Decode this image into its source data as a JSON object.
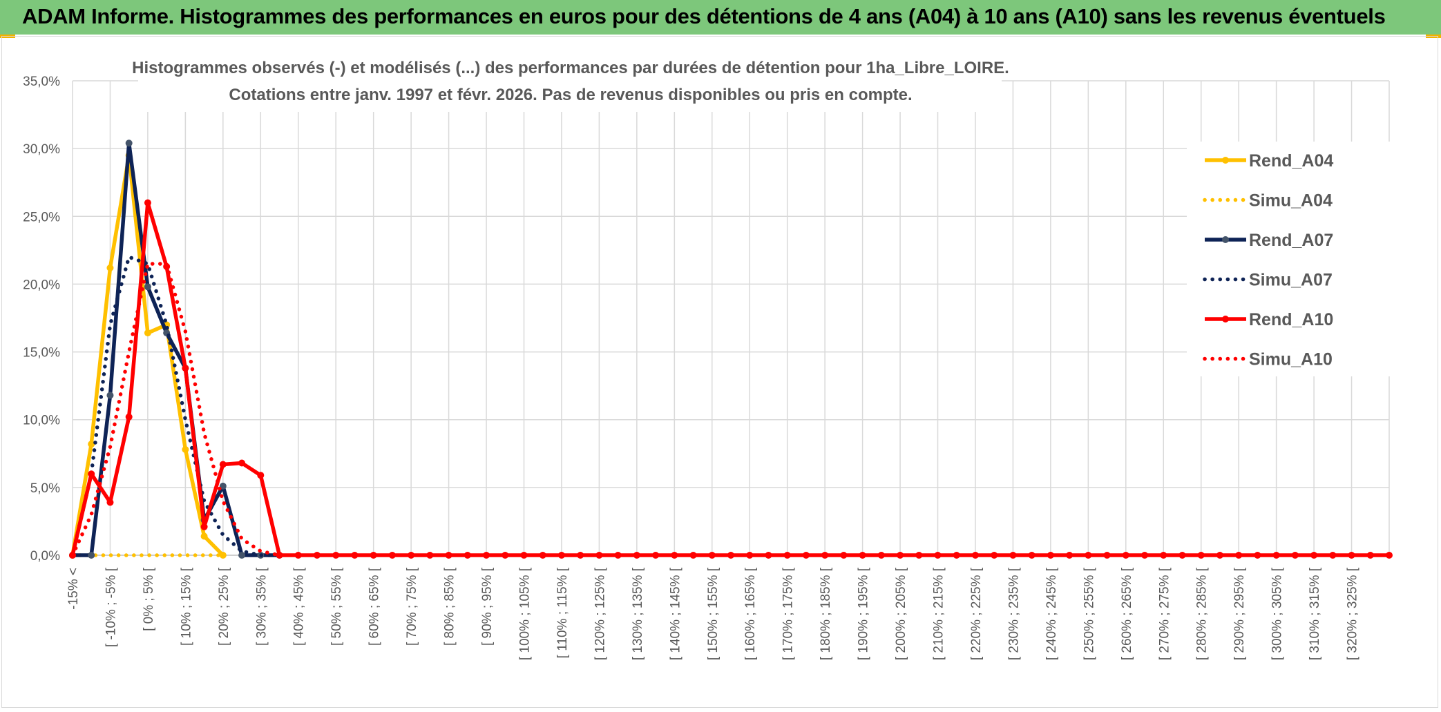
{
  "banner": {
    "title": "ADAM Informe. Histogrammes des performances en euros pour des détentions de 4 ans (A04) à 10 ans (A10) sans les revenus éventuels"
  },
  "chart_data": {
    "type": "line",
    "title": "Histogrammes observés (-) et modélisés (...) des performances par durées de détention pour 1ha_Libre_LOIRE.",
    "subtitle": "Cotations entre janv. 1997 et févr. 2026. Pas de revenus disponibles ou pris en compte.",
    "xlabel": "",
    "ylabel": "",
    "ylim": [
      0,
      35
    ],
    "y_ticks": [
      "0,0%",
      "5,0%",
      "10,0%",
      "15,0%",
      "20,0%",
      "25,0%",
      "30,0%",
      "35,0%"
    ],
    "x_labels": [
      "-15% <",
      "[ -10% ; -5% [",
      "[ 0% ; 5% [",
      "[ 10% ; 15% [",
      "[ 20% ; 25% [",
      "[ 30% ; 35% [",
      "[ 40% ; 45% [",
      "[ 50% ; 55% [",
      "[ 60% ; 65% [",
      "[ 70% ; 75% [",
      "[ 80% ; 85% [",
      "[ 90% ; 95% [",
      "[ 100% ; 105% [",
      "[ 110% ; 115% [",
      "[ 120% ; 125% [",
      "[ 130% ; 135% [",
      "[ 140% ; 145% [",
      "[ 150% ; 155% [",
      "[ 160% ; 165% [",
      "[ 170% ; 175% [",
      "[ 180% ; 185% [",
      "[ 190% ; 195% [",
      "[ 200% ; 205% [",
      "[ 210% ; 215% [",
      "[ 220% ; 225% [",
      "[ 230% ; 235% [",
      "[ 240% ; 245% [",
      "[ 250% ; 255% [",
      "[ 260% ; 265% [",
      "[ 270% ; 275% [",
      "[ 280% ; 285% [",
      "[ 290% ; 295% [",
      "[ 300% ; 305% [",
      "[ 310% ; 315% [",
      "[ 320% ; 325% ["
    ],
    "num_points": 71,
    "grid": true,
    "legend_position": "right",
    "series": [
      {
        "name": "Rend_A04",
        "style": "solid",
        "markers": true,
        "color": "#ffc000",
        "values": [
          0,
          8.2,
          21.2,
          29.5,
          16.4,
          17.0,
          7.8,
          1.4,
          0
        ]
      },
      {
        "name": "Simu_A04",
        "style": "dotted",
        "markers": false,
        "color": "#ffc000",
        "values": [
          0,
          0,
          0,
          0,
          0,
          0,
          0,
          0,
          0
        ]
      },
      {
        "name": "Rend_A07",
        "style": "solid",
        "markers": true,
        "color": "#0e2356",
        "values": [
          0,
          0,
          11.8,
          30.4,
          19.8,
          16.4,
          13.8,
          2.6,
          5.1,
          0,
          0,
          0
        ]
      },
      {
        "name": "Simu_A07",
        "style": "dotted",
        "markers": false,
        "color": "#0e2356",
        "values": [
          0,
          6.0,
          17.0,
          22.0,
          21.5,
          17.0,
          10.0,
          4.0,
          1.5,
          0.3,
          0,
          0
        ]
      },
      {
        "name": "Rend_A10",
        "style": "solid",
        "markers": true,
        "color": "#ff0000",
        "values": [
          0,
          6.0,
          3.9,
          10.2,
          26.0,
          21.3,
          13.8,
          2.1,
          6.7,
          6.8,
          5.9,
          0,
          0,
          0,
          0,
          0,
          0,
          0,
          0,
          0,
          0,
          0,
          0,
          0,
          0,
          0,
          0,
          0,
          0,
          0,
          0,
          0,
          0,
          0,
          0,
          0,
          0,
          0,
          0,
          0,
          0,
          0,
          0,
          0,
          0,
          0,
          0,
          0,
          0,
          0,
          0,
          0,
          0,
          0,
          0,
          0,
          0,
          0,
          0,
          0,
          0,
          0,
          0,
          0,
          0,
          0,
          0,
          0,
          0,
          0,
          0
        ]
      },
      {
        "name": "Simu_A10",
        "style": "dotted",
        "markers": false,
        "color": "#ff0000",
        "values": [
          0,
          3.0,
          8.0,
          15.0,
          21.5,
          21.5,
          16.5,
          9.0,
          4.0,
          1.2,
          0.3,
          0
        ]
      }
    ]
  }
}
